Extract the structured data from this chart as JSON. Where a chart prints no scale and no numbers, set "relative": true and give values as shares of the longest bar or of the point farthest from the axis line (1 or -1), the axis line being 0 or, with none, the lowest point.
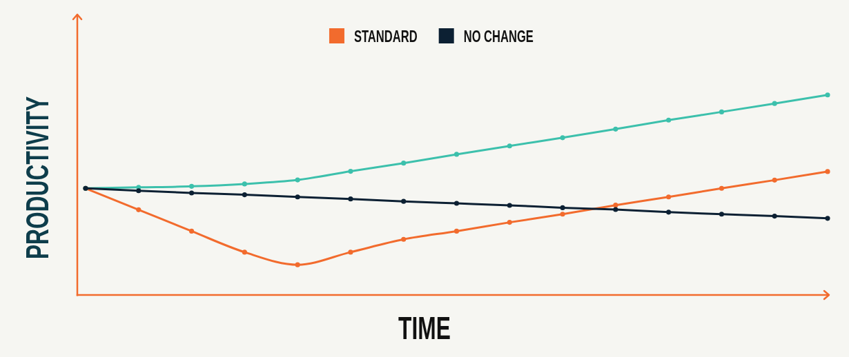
{
  "chart_data": {
    "type": "line",
    "relative": true,
    "xlabel": "TIME",
    "ylabel": "PRODUCTIVITY",
    "categories": [
      null,
      null,
      null,
      null,
      null,
      null,
      null,
      null,
      null,
      null,
      null,
      null,
      null,
      null,
      null
    ],
    "series": [
      {
        "name": "STANDARD",
        "color": "#f26b2d",
        "values": [
          0.533,
          0.426,
          0.319,
          0.214,
          0.151,
          0.214,
          0.278,
          0.319,
          0.363,
          0.404,
          0.449,
          0.49,
          0.533,
          0.574,
          0.617
        ]
      },
      {
        "color": "#3cc0ac",
        "values": [
          0.533,
          0.538,
          0.543,
          0.555,
          0.575,
          0.618,
          0.659,
          0.703,
          0.745,
          0.786,
          0.829,
          0.874,
          0.915,
          0.957,
          1
        ]
      },
      {
        "name": "NO CHANGE",
        "color": "#0c2033",
        "values": [
          0.533,
          0.521,
          0.51,
          0.501,
          0.49,
          0.48,
          0.468,
          0.458,
          0.448,
          0.436,
          0.427,
          0.414,
          0.404,
          0.394,
          0.383
        ]
      }
    ],
    "marker": "circle",
    "line_style": "solid",
    "legend": "top"
  }
}
